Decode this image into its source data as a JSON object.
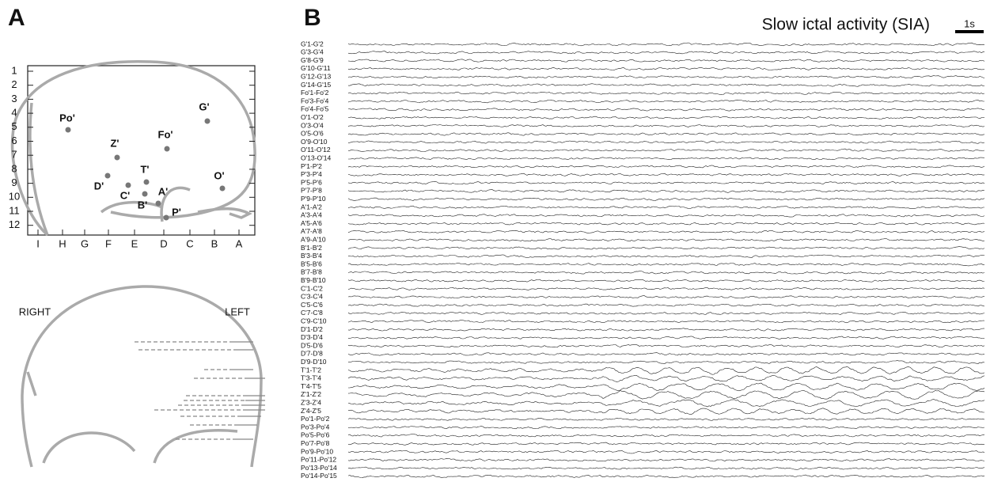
{
  "panel_a": {
    "label": "A",
    "row_labels": [
      "1",
      "2",
      "3",
      "4",
      "5",
      "6",
      "7",
      "8",
      "9",
      "10",
      "11",
      "12"
    ],
    "column_labels": [
      "I",
      "H",
      "G",
      "F",
      "E",
      "D",
      "C",
      "B",
      "A"
    ],
    "electrodes": [
      "G'",
      "Po'",
      "Fo'",
      "Z'",
      "T'",
      "O'",
      "D'",
      "C'",
      "A'",
      "B'",
      "P'"
    ],
    "coronal": {
      "right": "RIGHT",
      "left": "LEFT"
    }
  },
  "panel_b": {
    "label": "B",
    "title": "Slow ictal activity (SIA)",
    "scale_bar": "1s",
    "channels": [
      "G'1-G'2",
      "G'3-G'4",
      "G'8-G'9",
      "G'10-G'11",
      "G'12-G'13",
      "G'14-G'15",
      "Fo'1-Fo'2",
      "Fo'3-Fo'4",
      "Fo'4-Fo'5",
      "O'1-O'2",
      "O'3-O'4",
      "O'5-O'6",
      "O'9-O'10",
      "O'11-O'12",
      "O'13-O'14",
      "P'1-P'2",
      "P'3-P'4",
      "P'5-P'6",
      "P'7-P'8",
      "P'9-P'10",
      "A'1-A'2",
      "A'3-A'4",
      "A'5-A'6",
      "A'7-A'8",
      "A'9-A'10",
      "B'1-B'2",
      "B'3-B'4",
      "B'5-B'6",
      "B'7-B'8",
      "B'9-B'10",
      "C'1-C'2",
      "C'3-C'4",
      "C'5-C'6",
      "C'7-C'8",
      "C'9-C'10",
      "D'1-D'2",
      "D'3-D'4",
      "D'5-D'6",
      "D'7-D'8",
      "D'9-D'10",
      "T'1-T'2",
      "T'3-T'4",
      "T'4-T'5",
      "Z'1-Z'2",
      "Z'3-Z'4",
      "Z'4-Z'5",
      "Po'1-Po'2",
      "Po'3-Po'4",
      "Po'5-Po'6",
      "Po'7-Po'8",
      "Po'9-Po'10",
      "Po'11-Po'12",
      "Po'13-Po'14",
      "Po'14-Po'15"
    ]
  }
}
